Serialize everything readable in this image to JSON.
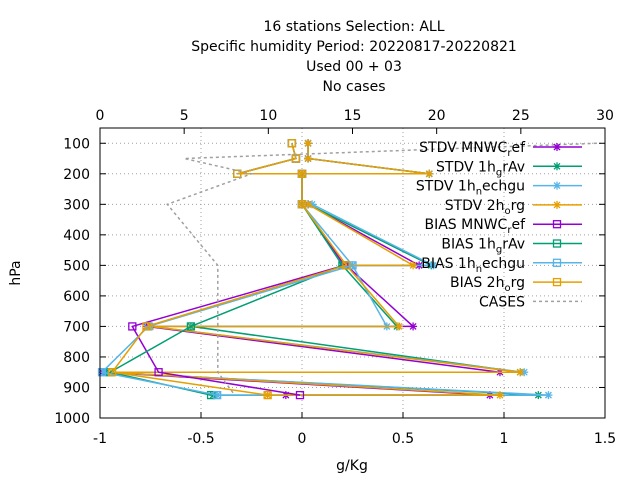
{
  "chart_data": {
    "type": "line",
    "title_lines": [
      "16 stations Selection: ALL",
      "Specific humidity  Period: 20220817-20220821",
      "Used  00 + 03",
      "No cases"
    ],
    "xlabel": "g/Kg",
    "ylabel": "hPa",
    "xlim": [
      -1,
      1.5
    ],
    "x_ticks": [
      "-1",
      "-0.5",
      "0",
      "0.5",
      "1",
      "1.5"
    ],
    "x2lim": [
      0,
      30
    ],
    "x2_ticks": [
      "0",
      "5",
      "10",
      "15",
      "20",
      "25",
      "30"
    ],
    "ylim": [
      1000,
      50
    ],
    "y_ticks": [
      "100",
      "200",
      "300",
      "400",
      "500",
      "600",
      "700",
      "800",
      "900",
      "1000"
    ],
    "grid": true,
    "legend_position": "top-right",
    "series": [
      {
        "name": "STDV MNWC_ref",
        "legend_main": "STDV MNWC",
        "legend_sub": "r",
        "legend_tail": "ef",
        "color": "#9400d3",
        "marker": "star",
        "points": [
          [
            0.03,
            100
          ],
          [
            0.03,
            150
          ],
          [
            0.63,
            200
          ],
          [
            0.0,
            200
          ],
          [
            0.0,
            300
          ],
          [
            0.03,
            300
          ],
          [
            0.58,
            500
          ],
          [
            0.22,
            500
          ],
          [
            0.55,
            700
          ],
          [
            -0.77,
            700
          ],
          [
            0.98,
            850
          ],
          [
            -0.99,
            850
          ],
          [
            0.93,
            925
          ],
          [
            -0.08,
            925
          ]
        ]
      },
      {
        "name": "STDV 1h_grAv",
        "legend_main": "STDV 1h",
        "legend_sub": "g",
        "legend_tail": "rAv",
        "color": "#009e73",
        "marker": "star",
        "points": [
          [
            0.03,
            100
          ],
          [
            0.03,
            150
          ],
          [
            0.63,
            200
          ],
          [
            0.0,
            200
          ],
          [
            0.0,
            300
          ],
          [
            0.03,
            300
          ],
          [
            0.64,
            500
          ],
          [
            0.2,
            500
          ],
          [
            0.47,
            700
          ],
          [
            -0.55,
            700
          ],
          [
            1.08,
            850
          ],
          [
            -0.97,
            850
          ],
          [
            1.17,
            925
          ],
          [
            -0.44,
            925
          ]
        ]
      },
      {
        "name": "STDV 1h_nechgu",
        "legend_main": "STDV 1h",
        "legend_sub": "n",
        "legend_tail": "echgu",
        "color": "#56b4e9",
        "marker": "star",
        "points": [
          [
            0.03,
            100
          ],
          [
            0.03,
            150
          ],
          [
            0.63,
            200
          ],
          [
            0.0,
            200
          ],
          [
            0.0,
            300
          ],
          [
            0.05,
            300
          ],
          [
            0.65,
            500
          ],
          [
            0.25,
            500
          ],
          [
            0.42,
            700
          ],
          [
            -0.75,
            700
          ],
          [
            1.1,
            850
          ],
          [
            -0.98,
            850
          ],
          [
            1.22,
            925
          ],
          [
            -0.42,
            925
          ]
        ]
      },
      {
        "name": "STDV 2h_org",
        "legend_main": "STDV 2h",
        "legend_sub": "o",
        "legend_tail": "rg",
        "color": "#e69f00",
        "marker": "star",
        "points": [
          [
            0.03,
            100
          ],
          [
            0.03,
            150
          ],
          [
            0.63,
            200
          ],
          [
            0.0,
            200
          ],
          [
            0.0,
            300
          ],
          [
            0.03,
            300
          ],
          [
            0.55,
            500
          ],
          [
            0.22,
            500
          ],
          [
            0.48,
            700
          ],
          [
            -0.75,
            700
          ],
          [
            1.08,
            850
          ],
          [
            -0.94,
            850
          ],
          [
            0.98,
            925
          ],
          [
            -0.17,
            925
          ]
        ]
      },
      {
        "name": "BIAS MNWC_ref",
        "legend_main": "BIAS MNWC",
        "legend_sub": "r",
        "legend_tail": "ef",
        "color": "#9400d3",
        "marker": "square",
        "points": [
          [
            -0.05,
            100
          ],
          [
            -0.03,
            150
          ],
          [
            -0.32,
            200
          ],
          [
            0.0,
            200
          ],
          [
            0.0,
            300
          ],
          [
            0.21,
            500
          ],
          [
            -0.84,
            700
          ],
          [
            -0.71,
            850
          ],
          [
            -0.01,
            925
          ]
        ]
      },
      {
        "name": "BIAS 1h_grAv",
        "legend_main": "BIAS 1h",
        "legend_sub": "g",
        "legend_tail": "rAv",
        "color": "#009e73",
        "marker": "square",
        "points": [
          [
            -0.05,
            100
          ],
          [
            -0.03,
            150
          ],
          [
            -0.32,
            200
          ],
          [
            0.0,
            200
          ],
          [
            0.0,
            300
          ],
          [
            0.2,
            500
          ],
          [
            -0.55,
            700
          ],
          [
            -0.95,
            850
          ],
          [
            -0.45,
            925
          ]
        ]
      },
      {
        "name": "BIAS 1h_nechgu",
        "legend_main": "BIAS 1h",
        "legend_sub": "n",
        "legend_tail": "echgu",
        "color": "#56b4e9",
        "marker": "square",
        "points": [
          [
            -0.05,
            100
          ],
          [
            -0.03,
            150
          ],
          [
            -0.32,
            200
          ],
          [
            0.0,
            200
          ],
          [
            0.0,
            300
          ],
          [
            0.25,
            500
          ],
          [
            -0.76,
            700
          ],
          [
            -0.99,
            850
          ],
          [
            -0.42,
            925
          ]
        ]
      },
      {
        "name": "BIAS 2h_org",
        "legend_main": "BIAS 2h",
        "legend_sub": "o",
        "legend_tail": "rg",
        "color": "#e69f00",
        "marker": "square",
        "points": [
          [
            -0.05,
            100
          ],
          [
            -0.03,
            150
          ],
          [
            -0.32,
            200
          ],
          [
            0.0,
            200
          ],
          [
            0.0,
            300
          ],
          [
            0.22,
            500
          ],
          [
            -0.77,
            700
          ],
          [
            -0.94,
            850
          ],
          [
            -0.17,
            925
          ]
        ]
      },
      {
        "name": "CASES",
        "legend_main": "CASES",
        "legend_sub": "",
        "legend_tail": "",
        "color": "#a0a0a0",
        "marker": "none",
        "dashed": true,
        "axis": "x2",
        "points": [
          [
            29.5,
            100
          ],
          [
            5,
            150
          ],
          [
            9,
            200
          ],
          [
            4,
            300
          ],
          [
            7,
            500
          ],
          [
            7,
            850
          ],
          [
            8,
            925
          ]
        ]
      }
    ]
  }
}
